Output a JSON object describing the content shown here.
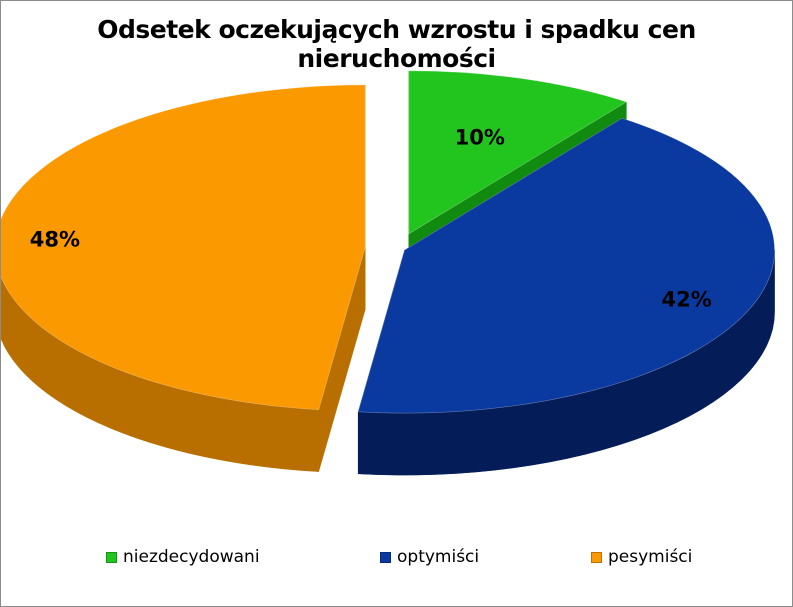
{
  "chart_data": {
    "type": "pie",
    "title": "Odsetek oczekujących wzrostu i spadku cen nieruchomości",
    "three_d": true,
    "exploded": true,
    "legend_position": "bottom",
    "categories": [
      "niezdecydowani",
      "optymiści",
      "pesymiści"
    ],
    "values": [
      10,
      42,
      48
    ],
    "data_labels": [
      "10%",
      "42%",
      "48%"
    ],
    "colors": [
      "#22c51e",
      "#0a3aa0",
      "#fb9900"
    ],
    "side_colors": [
      "#118a10",
      "#041c58",
      "#b96f00"
    ]
  }
}
